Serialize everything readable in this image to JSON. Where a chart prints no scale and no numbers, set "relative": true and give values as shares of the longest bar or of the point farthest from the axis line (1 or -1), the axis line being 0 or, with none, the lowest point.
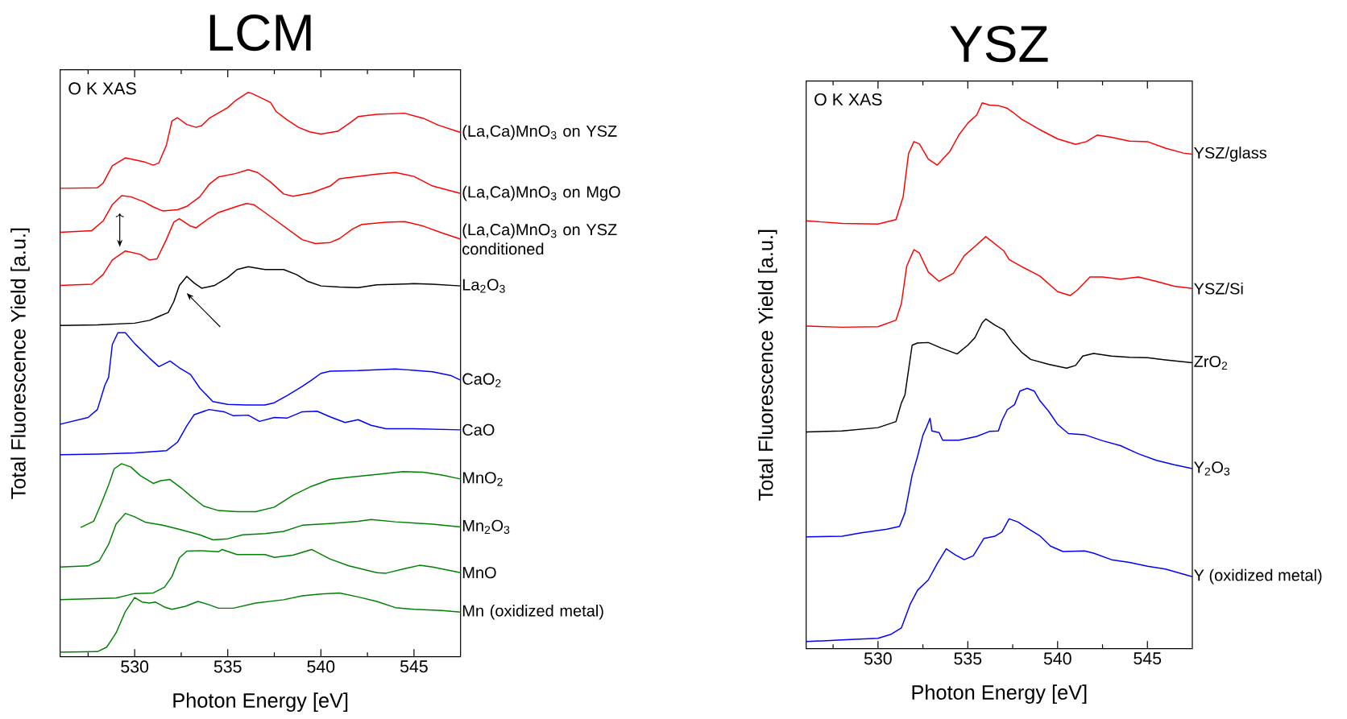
{
  "chart_data": [
    {
      "type": "line",
      "title": "LCM",
      "xlabel": "Photon Energy [eV]",
      "ylabel": "Total Fluorescence Yield [a.u.]",
      "annotations": [
        "O K XAS"
      ],
      "relative": true,
      "xlim": [
        526,
        547.5
      ],
      "xticks": [
        {
          "value": 527.5,
          "label": null
        },
        530,
        {
          "value": 532.5,
          "label": null
        },
        535,
        {
          "value": 537.5,
          "label": null
        },
        540,
        {
          "value": 542.5,
          "label": null
        },
        545
      ],
      "line_style": "solid",
      "marker": "none",
      "grid": false,
      "legend": false,
      "series": [
        {
          "name": "(La,Ca)MnO$_{3}$ on YSZ",
          "color": "#ff0000",
          "x": [
            526,
            528,
            528.3,
            528.8,
            529.5,
            530.5,
            531,
            531.3,
            531.7,
            532,
            532.3,
            532.8,
            533.3,
            533.6,
            534,
            535,
            535.4,
            536.1,
            536.3,
            537,
            537.3,
            537.6,
            538.2,
            538.8,
            539.4,
            540,
            540.9,
            541.6,
            542,
            543,
            544.5,
            545.5,
            546.3,
            547.5
          ],
          "values": [
            0.83,
            0.831,
            0.839,
            0.87,
            0.884,
            0.877,
            0.871,
            0.875,
            0.906,
            0.949,
            0.955,
            0.943,
            0.938,
            0.941,
            0.954,
            0.973,
            0.985,
            1.0,
            0.998,
            0.987,
            0.982,
            0.966,
            0.951,
            0.938,
            0.93,
            0.926,
            0.931,
            0.947,
            0.957,
            0.961,
            0.963,
            0.954,
            0.942,
            0.929
          ]
        },
        {
          "name": "(La,Ca)MnO$_{3}$ on MgO",
          "color": "#ff0000",
          "x": [
            526,
            527.7,
            528.3,
            528.8,
            529.3,
            529.8,
            530.5,
            531,
            531.5,
            532.3,
            532.8,
            533.5,
            534,
            534.5,
            535.4,
            536.1,
            536.6,
            537.3,
            538,
            538.5,
            539.5,
            540.5,
            541,
            542,
            543,
            544,
            545,
            546,
            547.5
          ],
          "values": [
            0.752,
            0.755,
            0.772,
            0.801,
            0.817,
            0.815,
            0.806,
            0.797,
            0.79,
            0.792,
            0.798,
            0.815,
            0.837,
            0.85,
            0.856,
            0.863,
            0.858,
            0.841,
            0.82,
            0.816,
            0.822,
            0.834,
            0.847,
            0.851,
            0.855,
            0.858,
            0.851,
            0.834,
            0.821
          ]
        },
        {
          "name": "(La,Ca)MnO$_{3}$ on YSZ conditioned",
          "color": "#ff0000",
          "x": [
            526,
            527.7,
            528.3,
            528.8,
            529.5,
            530.3,
            530.8,
            531.2,
            531.7,
            532.1,
            532.4,
            533,
            533.3,
            534,
            534.5,
            535.5,
            536,
            536.4,
            537,
            538,
            539,
            539.7,
            540.5,
            541,
            541.7,
            542.2,
            543.5,
            544.5,
            545.5,
            546.5,
            547.5
          ],
          "values": [
            0.658,
            0.66,
            0.677,
            0.703,
            0.719,
            0.713,
            0.703,
            0.705,
            0.739,
            0.77,
            0.776,
            0.763,
            0.76,
            0.777,
            0.787,
            0.798,
            0.803,
            0.801,
            0.787,
            0.763,
            0.739,
            0.732,
            0.734,
            0.741,
            0.758,
            0.766,
            0.77,
            0.771,
            0.763,
            0.751,
            0.74
          ]
        },
        {
          "name": "La$_{2}$O$_{3}$",
          "color": "#000000",
          "x": [
            526,
            528,
            530,
            530.8,
            531.3,
            531.8,
            532.1,
            532.4,
            532.8,
            533.2,
            533.6,
            534.3,
            535,
            535.5,
            536.1,
            537,
            538,
            538.7,
            539.3,
            540,
            541,
            542,
            543,
            544,
            545,
            546,
            547.5
          ],
          "values": [
            0.587,
            0.588,
            0.591,
            0.596,
            0.603,
            0.61,
            0.629,
            0.658,
            0.674,
            0.662,
            0.653,
            0.658,
            0.672,
            0.686,
            0.691,
            0.686,
            0.686,
            0.677,
            0.665,
            0.657,
            0.655,
            0.654,
            0.659,
            0.66,
            0.661,
            0.66,
            0.657
          ]
        },
        {
          "name": "CaO$_{2}$",
          "color": "#0000ff",
          "x": [
            526,
            527.5,
            528,
            528.4,
            528.6,
            528.8,
            529.1,
            529.5,
            530,
            530.8,
            531.3,
            531.9,
            532.4,
            533,
            533.5,
            534.2,
            535,
            536,
            537,
            537.5,
            538.2,
            539,
            539.5,
            540,
            540.5,
            542,
            544,
            546,
            547,
            547.5
          ],
          "values": [
            0.412,
            0.424,
            0.438,
            0.481,
            0.495,
            0.553,
            0.574,
            0.574,
            0.555,
            0.529,
            0.514,
            0.524,
            0.512,
            0.5,
            0.476,
            0.452,
            0.447,
            0.446,
            0.446,
            0.45,
            0.463,
            0.479,
            0.49,
            0.502,
            0.506,
            0.507,
            0.51,
            0.505,
            0.498,
            0.49
          ]
        },
        {
          "name": "CaO",
          "color": "#0000ff",
          "x": [
            526,
            528,
            530,
            531.7,
            532.3,
            532.8,
            533.2,
            534,
            534.8,
            535.3,
            536.1,
            536.7,
            537.5,
            538.2,
            539,
            539.8,
            540.5,
            541.3,
            542,
            542.7,
            543.5,
            545,
            547.5
          ],
          "values": [
            0.358,
            0.359,
            0.361,
            0.365,
            0.38,
            0.409,
            0.429,
            0.438,
            0.434,
            0.427,
            0.428,
            0.417,
            0.424,
            0.423,
            0.434,
            0.435,
            0.425,
            0.415,
            0.42,
            0.41,
            0.404,
            0.404,
            0.402
          ]
        },
        {
          "name": "MnO$_{2}$",
          "color": "#008000",
          "x": [
            527.1,
            527.8,
            528.2,
            528.6,
            528.9,
            529.3,
            529.8,
            530.3,
            531,
            531.4,
            531.9,
            532.5,
            533,
            533.7,
            534.5,
            535.5,
            536.5,
            537.5,
            538.5,
            539.5,
            540.5,
            541.5,
            543,
            544.4,
            545.5,
            546.5,
            547.5
          ],
          "values": [
            0.229,
            0.24,
            0.271,
            0.304,
            0.333,
            0.342,
            0.336,
            0.321,
            0.307,
            0.312,
            0.314,
            0.299,
            0.285,
            0.267,
            0.259,
            0.257,
            0.257,
            0.265,
            0.286,
            0.302,
            0.314,
            0.318,
            0.323,
            0.328,
            0.327,
            0.322,
            0.315
          ]
        },
        {
          "name": "Mn$_{2}$O$_{3}$",
          "color": "#008000",
          "x": [
            526,
            527.5,
            528.1,
            528.6,
            529,
            529.5,
            530,
            530.6,
            531.5,
            532.5,
            533.5,
            534.2,
            535,
            535.8,
            537,
            538,
            539,
            540.5,
            542,
            542.7,
            544,
            546,
            547.5
          ],
          "values": [
            0.159,
            0.161,
            0.17,
            0.199,
            0.235,
            0.254,
            0.248,
            0.238,
            0.233,
            0.225,
            0.216,
            0.207,
            0.209,
            0.216,
            0.218,
            0.222,
            0.233,
            0.236,
            0.24,
            0.243,
            0.239,
            0.235,
            0.23
          ]
        },
        {
          "name": "MnO",
          "color": "#008000",
          "x": [
            526,
            529,
            530,
            531,
            531.6,
            532,
            532.4,
            532.8,
            533.5,
            534.5,
            534.7,
            535.5,
            537,
            537.5,
            538.5,
            539.5,
            540.5,
            541.5,
            543,
            543.5,
            544.5,
            545.3,
            546,
            547.5
          ],
          "values": [
            0.101,
            0.104,
            0.112,
            0.113,
            0.123,
            0.142,
            0.175,
            0.187,
            0.188,
            0.186,
            0.19,
            0.181,
            0.181,
            0.176,
            0.18,
            0.19,
            0.173,
            0.161,
            0.149,
            0.148,
            0.156,
            0.162,
            0.159,
            0.149
          ]
        },
        {
          "name": "Mn (oxidized metal)",
          "color": "#008000",
          "x": [
            526,
            528,
            528.5,
            529,
            529.5,
            530,
            530.4,
            530.8,
            531.1,
            531.6,
            532,
            532.7,
            533.4,
            534,
            534.5,
            535.3,
            536.5,
            538,
            539,
            540,
            541,
            542,
            543,
            544,
            545,
            546.5,
            547.5
          ],
          "values": [
            0.008,
            0.009,
            0.017,
            0.042,
            0.08,
            0.105,
            0.097,
            0.095,
            0.097,
            0.088,
            0.084,
            0.089,
            0.098,
            0.092,
            0.086,
            0.086,
            0.095,
            0.101,
            0.108,
            0.111,
            0.113,
            0.106,
            0.098,
            0.087,
            0.084,
            0.082,
            0.079
          ]
        }
      ]
    },
    {
      "type": "line",
      "title": "YSZ",
      "xlabel": "Photon Energy [eV]",
      "ylabel": "Total Fluorescence Yield [a.u.]",
      "annotations": [
        "O K XAS"
      ],
      "relative": true,
      "xlim": [
        526,
        547.5
      ],
      "xticks": [
        {
          "value": 527.5,
          "label": null
        },
        530,
        {
          "value": 532.5,
          "label": null
        },
        535,
        {
          "value": 537.5,
          "label": null
        },
        540,
        {
          "value": 542.5,
          "label": null
        },
        545
      ],
      "line_style": "solid",
      "marker": "none",
      "grid": false,
      "legend": false,
      "series": [
        {
          "name": "YSZ/glass",
          "color": "#ff0000",
          "x": [
            526,
            528,
            530,
            531,
            531.4,
            531.7,
            532,
            532.3,
            532.8,
            533.3,
            534,
            534.5,
            535,
            535.5,
            535.8,
            536.2,
            536.7,
            537.2,
            537.5,
            538,
            539,
            540,
            541,
            541.6,
            542.2,
            543,
            544,
            545,
            546,
            547,
            547.5
          ],
          "values": [
            0.784,
            0.779,
            0.778,
            0.786,
            0.828,
            0.907,
            0.929,
            0.925,
            0.897,
            0.886,
            0.911,
            0.941,
            0.963,
            0.978,
            1.0,
            0.996,
            0.995,
            0.99,
            0.983,
            0.97,
            0.951,
            0.934,
            0.924,
            0.929,
            0.941,
            0.937,
            0.93,
            0.929,
            0.917,
            0.908,
            0.906
          ]
        },
        {
          "name": "YSZ/Si",
          "color": "#ff0000",
          "x": [
            526,
            528,
            530,
            531,
            531.3,
            531.6,
            532,
            532.3,
            532.8,
            533.4,
            534.2,
            534.8,
            535.5,
            536,
            536.5,
            537,
            537.3,
            538,
            539,
            540,
            540.7,
            541.1,
            541.8,
            542.5,
            543.5,
            544.5,
            545.5,
            546.5,
            547.5
          ],
          "values": [
            0.591,
            0.589,
            0.59,
            0.602,
            0.632,
            0.701,
            0.731,
            0.725,
            0.69,
            0.673,
            0.688,
            0.72,
            0.74,
            0.755,
            0.742,
            0.729,
            0.713,
            0.7,
            0.683,
            0.654,
            0.647,
            0.657,
            0.681,
            0.681,
            0.677,
            0.681,
            0.673,
            0.664,
            0.66
          ]
        },
        {
          "name": "ZrO$_{2}$",
          "color": "#000000",
          "x": [
            526,
            528,
            530,
            531,
            531.3,
            531.5,
            531.9,
            532.2,
            532.8,
            533.5,
            534.4,
            535,
            535.4,
            535.8,
            536,
            536.5,
            537,
            537.5,
            538,
            538.5,
            539.5,
            540.5,
            541,
            541.4,
            542,
            543,
            544,
            545,
            546,
            547.5
          ],
          "values": [
            0.397,
            0.399,
            0.405,
            0.416,
            0.45,
            0.465,
            0.556,
            0.56,
            0.561,
            0.551,
            0.54,
            0.556,
            0.57,
            0.597,
            0.604,
            0.593,
            0.584,
            0.561,
            0.543,
            0.53,
            0.521,
            0.514,
            0.519,
            0.536,
            0.541,
            0.536,
            0.534,
            0.533,
            0.529,
            0.524
          ]
        },
        {
          "name": "Y$_{2}$O$_{3}$",
          "color": "#0000ff",
          "x": [
            526,
            528,
            529,
            530.5,
            531.2,
            531.5,
            531.9,
            532.2,
            532.5,
            532.7,
            532.9,
            533,
            533.4,
            533.6,
            534.5,
            535.5,
            536.2,
            536.7,
            536.9,
            537.2,
            537.6,
            537.9,
            538.3,
            538.7,
            539,
            539.5,
            540,
            540.6,
            541.5,
            542.5,
            543.5,
            544.5,
            545.5,
            546.5,
            547.5
          ],
          "values": [
            0.205,
            0.206,
            0.212,
            0.219,
            0.224,
            0.249,
            0.318,
            0.352,
            0.391,
            0.406,
            0.422,
            0.399,
            0.396,
            0.382,
            0.382,
            0.389,
            0.398,
            0.399,
            0.418,
            0.438,
            0.447,
            0.472,
            0.477,
            0.472,
            0.455,
            0.435,
            0.411,
            0.394,
            0.392,
            0.381,
            0.372,
            0.357,
            0.345,
            0.337,
            0.33
          ]
        },
        {
          "name": "Y (oxidized metal)",
          "color": "#0000ff",
          "x": [
            526,
            528,
            530,
            530.7,
            531.3,
            531.8,
            532.2,
            532.8,
            533.3,
            533.8,
            534.3,
            534.8,
            535.3,
            535.9,
            536.5,
            536.9,
            537.3,
            537.8,
            538.4,
            539,
            539.6,
            540.3,
            541.5,
            542,
            543,
            544,
            545,
            546,
            547.5
          ],
          "values": [
            0.013,
            0.016,
            0.019,
            0.026,
            0.038,
            0.082,
            0.107,
            0.126,
            0.156,
            0.183,
            0.172,
            0.163,
            0.17,
            0.202,
            0.206,
            0.214,
            0.238,
            0.232,
            0.219,
            0.207,
            0.188,
            0.178,
            0.179,
            0.175,
            0.163,
            0.158,
            0.151,
            0.146,
            0.132
          ]
        }
      ]
    }
  ]
}
